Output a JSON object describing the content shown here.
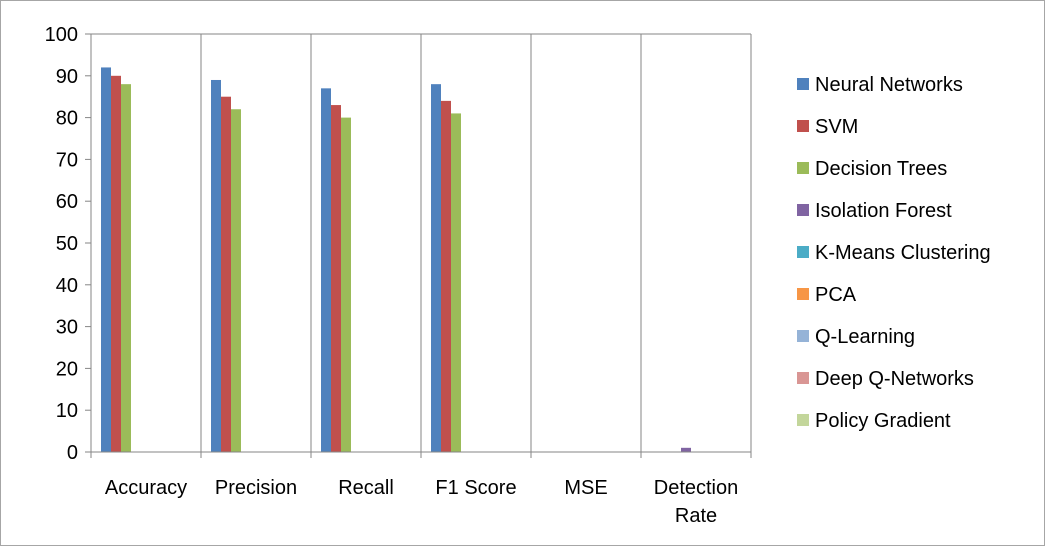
{
  "chart_data": {
    "type": "bar",
    "categories": [
      "Accuracy",
      "Precision",
      "Recall",
      "F1 Score",
      "MSE",
      "Detection Rate"
    ],
    "category_labels": [
      [
        "Accuracy"
      ],
      [
        "Precision"
      ],
      [
        "Recall"
      ],
      [
        "F1 Score"
      ],
      [
        "MSE"
      ],
      [
        "Detection",
        "Rate"
      ]
    ],
    "series": [
      {
        "name": "Neural Networks",
        "color": "#4f81bd",
        "values": [
          92,
          89,
          87,
          88,
          0,
          0
        ]
      },
      {
        "name": "SVM",
        "color": "#c0504d",
        "values": [
          90,
          85,
          83,
          84,
          0,
          0
        ]
      },
      {
        "name": "Decision Trees",
        "color": "#9bbb59",
        "values": [
          88,
          82,
          80,
          81,
          0,
          0
        ]
      },
      {
        "name": "Isolation Forest",
        "color": "#8064a2",
        "values": [
          0,
          0,
          0,
          0,
          0,
          1
        ]
      },
      {
        "name": "K-Means Clustering",
        "color": "#4bacc6",
        "values": [
          0,
          0,
          0,
          0,
          0,
          0
        ]
      },
      {
        "name": "PCA",
        "color": "#f79646",
        "values": [
          0,
          0,
          0,
          0,
          0,
          0
        ]
      },
      {
        "name": "Q-Learning",
        "color": "#95b3d7",
        "values": [
          0,
          0,
          0,
          0,
          0,
          0
        ]
      },
      {
        "name": "Deep Q-Networks",
        "color": "#d99694",
        "values": [
          0,
          0,
          0,
          0,
          0,
          0
        ]
      },
      {
        "name": "Policy Gradient",
        "color": "#c3d69b",
        "values": [
          0,
          0,
          0,
          0,
          0,
          0
        ]
      }
    ],
    "ylim": [
      0,
      100
    ],
    "yticks": [
      0,
      10,
      20,
      30,
      40,
      50,
      60,
      70,
      80,
      90,
      100
    ],
    "title": "",
    "xlabel": "",
    "ylabel": "",
    "grid": "vertical category dividers",
    "legend_position": "right"
  }
}
